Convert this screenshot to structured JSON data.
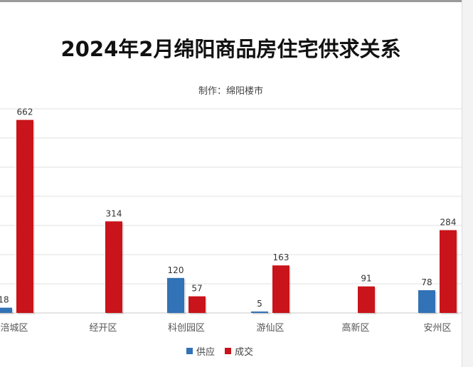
{
  "chart_data": {
    "type": "bar",
    "title": "2024年2月绵阳商品房住宅供求关系",
    "subtitle": "制作：绵阳楼市",
    "categories": [
      "涪城区",
      "经开区",
      "科创园区",
      "游仙区",
      "高新区",
      "安州区"
    ],
    "series": [
      {
        "name": "供应",
        "color": "#3272b6",
        "values": [
          18,
          null,
          120,
          5,
          null,
          78
        ]
      },
      {
        "name": "成交",
        "color": "#c8141a",
        "values": [
          662,
          314,
          57,
          163,
          91,
          284
        ]
      }
    ],
    "ylim": [
      0,
      700
    ],
    "grid": true,
    "legend": "bottom-center"
  }
}
